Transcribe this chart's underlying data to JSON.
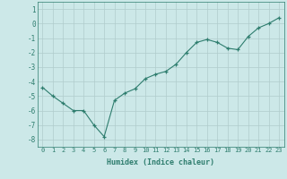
{
  "x": [
    0,
    1,
    2,
    3,
    4,
    5,
    6,
    7,
    8,
    9,
    10,
    11,
    12,
    13,
    14,
    15,
    16,
    17,
    18,
    19,
    20,
    21,
    22,
    23
  ],
  "y": [
    -4.4,
    -5.0,
    -5.5,
    -6.0,
    -6.0,
    -7.0,
    -7.8,
    -5.3,
    -4.8,
    -4.5,
    -3.8,
    -3.5,
    -3.3,
    -2.8,
    -2.0,
    -1.3,
    -1.1,
    -1.3,
    -1.7,
    -1.8,
    -0.9,
    -0.3,
    0.0,
    0.4
  ],
  "xlabel": "Humidex (Indice chaleur)",
  "xlim": [
    -0.5,
    23.5
  ],
  "ylim": [
    -8.5,
    1.5
  ],
  "yticks": [
    1,
    0,
    -1,
    -2,
    -3,
    -4,
    -5,
    -6,
    -7,
    -8
  ],
  "xtick_labels": [
    "0",
    "1",
    "2",
    "3",
    "4",
    "5",
    "6",
    "7",
    "8",
    "9",
    "10",
    "11",
    "12",
    "13",
    "14",
    "15",
    "16",
    "17",
    "18",
    "19",
    "20",
    "21",
    "22",
    "23"
  ],
  "line_color": "#2e7d6e",
  "bg_color": "#cce8e8",
  "grid_color": "#b0cccc",
  "font_family": "monospace"
}
